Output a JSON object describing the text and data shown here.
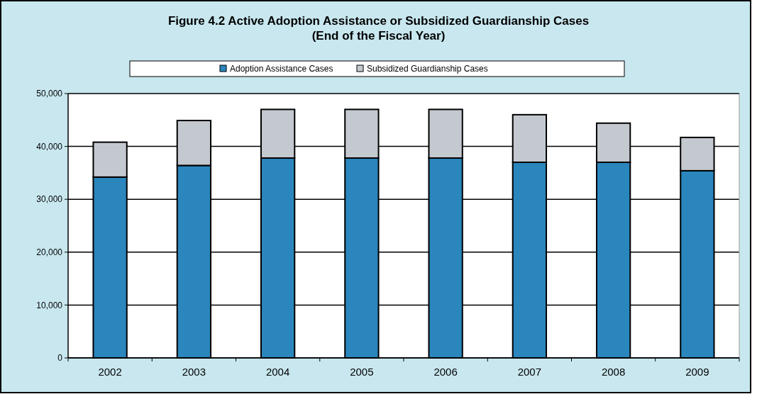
{
  "chart_data": {
    "type": "bar",
    "title": "Figure 4.2 Active Adoption Assistance or Subsidized Guardianship Cases",
    "subtitle": "(End of the Fiscal Year)",
    "categories": [
      "2002",
      "2003",
      "2004",
      "2005",
      "2006",
      "2007",
      "2008",
      "2009"
    ],
    "series": [
      {
        "name": "Adoption Assistance Cases",
        "color": "#2a86bd",
        "values": [
          34200,
          36400,
          37800,
          37800,
          37800,
          37000,
          37000,
          35400
        ]
      },
      {
        "name": "Subsidized Guardianship Cases",
        "color": "#c4c9d0",
        "values": [
          6600,
          8500,
          9200,
          9200,
          9200,
          9000,
          7400,
          6300
        ]
      }
    ],
    "stacked": true,
    "ylim": [
      0,
      50000
    ],
    "yticks": [
      {
        "value": 0,
        "label": "0"
      },
      {
        "value": 10000,
        "label": "10,000"
      },
      {
        "value": 20000,
        "label": "20,000"
      },
      {
        "value": 30000,
        "label": "30,000"
      },
      {
        "value": 40000,
        "label": "40,000"
      },
      {
        "value": 50000,
        "label": "50,000"
      }
    ],
    "grid": "y",
    "legend": "top"
  }
}
